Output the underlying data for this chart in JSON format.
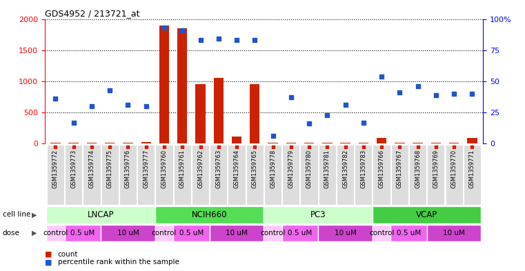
{
  "title": "GDS4952 / 213721_at",
  "samples": [
    "GSM1359772",
    "GSM1359773",
    "GSM1359774",
    "GSM1359775",
    "GSM1359776",
    "GSM1359777",
    "GSM1359760",
    "GSM1359761",
    "GSM1359762",
    "GSM1359763",
    "GSM1359764",
    "GSM1359765",
    "GSM1359778",
    "GSM1359779",
    "GSM1359780",
    "GSM1359781",
    "GSM1359782",
    "GSM1359783",
    "GSM1359766",
    "GSM1359767",
    "GSM1359768",
    "GSM1359769",
    "GSM1359770",
    "GSM1359771"
  ],
  "counts": [
    15,
    12,
    12,
    12,
    12,
    25,
    1900,
    1850,
    960,
    1050,
    110,
    960,
    15,
    12,
    12,
    12,
    12,
    12,
    90,
    12,
    12,
    12,
    12,
    90
  ],
  "percentile_ranks": [
    36,
    17,
    30,
    43,
    31,
    30,
    93,
    91,
    83,
    84,
    83,
    83,
    6,
    37,
    16,
    23,
    31,
    17,
    54,
    41,
    46,
    39,
    40,
    40
  ],
  "cell_lines": [
    {
      "name": "LNCAP",
      "start": 0,
      "end": 6,
      "color": "#ccffcc"
    },
    {
      "name": "NCIH660",
      "start": 6,
      "end": 12,
      "color": "#55dd55"
    },
    {
      "name": "PC3",
      "start": 12,
      "end": 18,
      "color": "#ccffcc"
    },
    {
      "name": "VCAP",
      "start": 18,
      "end": 24,
      "color": "#44cc44"
    }
  ],
  "dose_labels_per_sample": [
    "control",
    "0.5 uM",
    "0.5 uM",
    "10 uM",
    "10 uM",
    "10 uM",
    "control",
    "0.5 uM",
    "0.5 uM",
    "10 uM",
    "10 uM",
    "10 uM",
    "control",
    "0.5 uM",
    "0.5 uM",
    "10 uM",
    "10 uM",
    "10 uM",
    "control",
    "0.5 uM",
    "0.5 uM",
    "10 uM",
    "10 uM",
    "10 uM"
  ],
  "dose_fc": {
    "control": "#ffccff",
    "0.5 uM": "#ee66ee",
    "10 uM": "#cc44cc"
  },
  "bar_color": "#cc2200",
  "dot_color": "#2255cc",
  "ylim_left": [
    0,
    2000
  ],
  "ylim_right": [
    0,
    100
  ],
  "yticks_left": [
    0,
    500,
    1000,
    1500,
    2000
  ],
  "yticks_right": [
    0,
    25,
    50,
    75,
    100
  ],
  "ytick_labels_right": [
    "0",
    "25",
    "50",
    "75",
    "100%"
  ]
}
